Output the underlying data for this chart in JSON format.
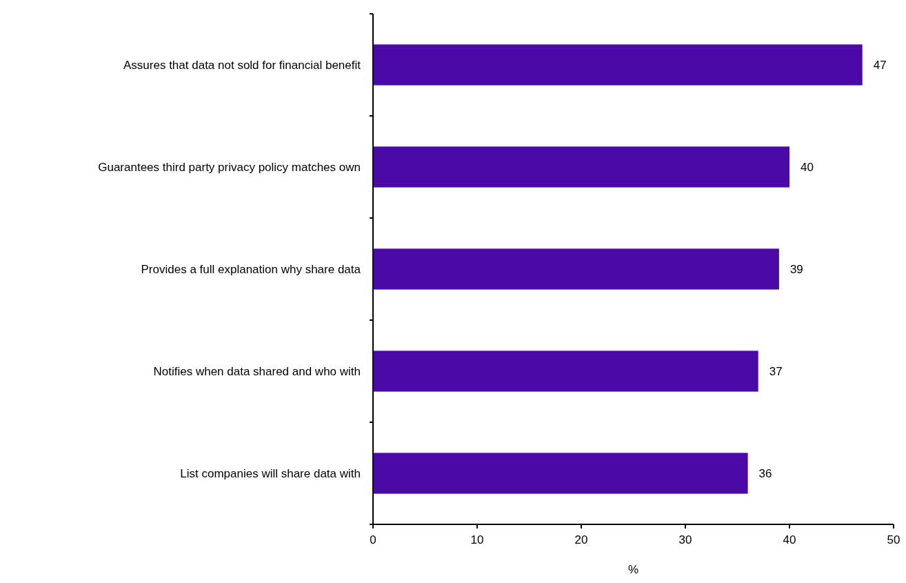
{
  "chart_data": {
    "type": "bar",
    "orientation": "horizontal",
    "xlabel": "%",
    "categories": [
      "Assures that data not sold for financial benefit",
      "Guarantees third party privacy policy matches own",
      "Provides a full explanation why share data",
      "Notifies when data shared and who with",
      "List companies will share data with"
    ],
    "values": [
      47,
      40,
      39,
      37,
      36
    ],
    "color": "#4b0aa8",
    "data_labels": true,
    "xlim": [
      0,
      50
    ],
    "xticks": [
      0,
      10,
      20,
      30,
      40,
      50
    ]
  }
}
